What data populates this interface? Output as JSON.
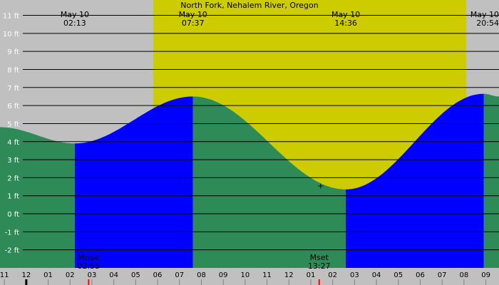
{
  "chart_data": {
    "type": "area",
    "title": "North Fork, Nehalem River, Oregon",
    "xlabel": "",
    "ylabel": "",
    "unit": "ft",
    "ylim": [
      -3.0,
      11.85
    ],
    "xlim_hours": [
      -1.2,
      21.6
    ],
    "y_ticks": [
      {
        "v": 11,
        "label": "11 ft"
      },
      {
        "v": 10,
        "label": "10 ft"
      },
      {
        "v": 9,
        "label": "9 ft"
      },
      {
        "v": 8,
        "label": "8 ft"
      },
      {
        "v": 7,
        "label": "7 ft"
      },
      {
        "v": 6,
        "label": "6 ft"
      },
      {
        "v": 5,
        "label": "5 ft"
      },
      {
        "v": 4,
        "label": "4 ft"
      },
      {
        "v": 3,
        "label": "3 ft"
      },
      {
        "v": 2,
        "label": "2 ft"
      },
      {
        "v": 1,
        "label": "1 ft"
      },
      {
        "v": 0,
        "label": "0 ft"
      },
      {
        "v": -1,
        "label": "-1 ft"
      },
      {
        "v": -2,
        "label": "-2 ft"
      }
    ],
    "x_ticks": [
      {
        "h": -1,
        "label": "11"
      },
      {
        "h": 0,
        "label": "12"
      },
      {
        "h": 1,
        "label": "01"
      },
      {
        "h": 2,
        "label": "02"
      },
      {
        "h": 3,
        "label": "03"
      },
      {
        "h": 4,
        "label": "04"
      },
      {
        "h": 5,
        "label": "05"
      },
      {
        "h": 6,
        "label": "06"
      },
      {
        "h": 7,
        "label": "07"
      },
      {
        "h": 8,
        "label": "08"
      },
      {
        "h": 9,
        "label": "09"
      },
      {
        "h": 10,
        "label": "10"
      },
      {
        "h": 11,
        "label": "11"
      },
      {
        "h": 12,
        "label": "12"
      },
      {
        "h": 13,
        "label": "01"
      },
      {
        "h": 14,
        "label": "02"
      },
      {
        "h": 15,
        "label": "03"
      },
      {
        "h": 16,
        "label": "04"
      },
      {
        "h": 17,
        "label": "05"
      },
      {
        "h": 18,
        "label": "06"
      },
      {
        "h": 19,
        "label": "07"
      },
      {
        "h": 20,
        "label": "08"
      },
      {
        "h": 21,
        "label": "09"
      }
    ],
    "tide_extremes": [
      {
        "h": 2.2167,
        "date": "May 10",
        "time": "02:13",
        "height": 3.9
      },
      {
        "h": 7.6167,
        "date": "May 10",
        "time": "07:37",
        "height": 6.5
      },
      {
        "h": 14.6,
        "date": "May 10",
        "time": "14:36",
        "height": 1.35
      },
      {
        "h": 20.9,
        "date": "May 10",
        "time": "20:54",
        "height": 6.65
      }
    ],
    "curve_edges": [
      {
        "h": -1.2,
        "height": 4.8
      },
      {
        "h": 21.6,
        "height": 6.5
      }
    ],
    "daylight": {
      "start_h": 5.8,
      "end_h": 20.1
    },
    "moon_events": [
      {
        "name": "Mrise",
        "time": "02:55",
        "h": 2.9167
      },
      {
        "name": "Mset",
        "time": "13:27",
        "h": 13.45
      }
    ],
    "current_marker": {
      "h": 13.45,
      "height": 1.6,
      "symbol": "+"
    },
    "colors": {
      "night": "#c0c0c0",
      "day": "#cccc00",
      "falling": "#2e8b57",
      "rising": "#0000ff",
      "axis_band": "#c0c0c0",
      "grid": "#000000",
      "y_labels": "#ffffff",
      "moon_tick": "#ff0000",
      "midnight_tick": "#000000"
    }
  }
}
